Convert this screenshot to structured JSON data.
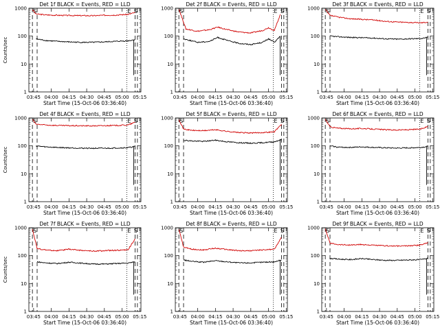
{
  "figure": {
    "background": "#ffffff",
    "panel_columns": 3,
    "event_color": "#000000",
    "lld_color": "#d00000"
  },
  "chart_data": [
    {
      "type": "line",
      "title": "Det 1f BLACK = Events, RED = LLD",
      "xlabel": "Start Time (15-Oct-06 03:36:40)",
      "ylabel": "Counts/sec",
      "ylog": true,
      "ylim": [
        1,
        1000
      ],
      "yticks": [
        "1",
        "10",
        "100",
        "1000"
      ],
      "xlim": [
        "03:41",
        "05:16"
      ],
      "xticks": [
        "03:45",
        "04:00",
        "04:15",
        "04:30",
        "04:45",
        "05:00",
        "05:15"
      ],
      "marker_labels": [
        "S",
        "E",
        "S"
      ],
      "series": [
        {
          "x": [
            "03:44",
            "03:47",
            "03:55",
            "04:05",
            "04:15",
            "04:25",
            "04:35",
            "04:45",
            "04:55",
            "05:05",
            "05:11"
          ],
          "y": [
            900,
            620,
            580,
            560,
            550,
            545,
            540,
            560,
            570,
            600,
            700
          ]
        },
        {
          "x": [
            "03:47",
            "03:55",
            "04:05",
            "04:15",
            "04:25",
            "04:35",
            "04:45",
            "04:55",
            "05:05",
            "05:11"
          ],
          "y": [
            80,
            70,
            65,
            62,
            60,
            60,
            62,
            65,
            68,
            75
          ]
        }
      ]
    },
    {
      "type": "line",
      "title": "Det 2f BLACK = Events, RED = LLD",
      "xlabel": "Start Time (15-Oct-06 03:36:40)",
      "ylabel": "",
      "ylog": true,
      "ylim": [
        1,
        1000
      ],
      "yticks": [
        "1",
        "10",
        "100",
        "1000"
      ],
      "xlim": [
        "03:41",
        "05:16"
      ],
      "xticks": [
        "03:45",
        "04:00",
        "04:15",
        "04:30",
        "04:45",
        "05:00",
        "05:15"
      ],
      "marker_labels": [
        "S",
        "E",
        "S"
      ],
      "series": [
        {
          "x": [
            "03:44",
            "03:50",
            "04:00",
            "04:10",
            "04:17",
            "04:25",
            "04:35",
            "04:45",
            "04:55",
            "05:00",
            "05:05",
            "05:10"
          ],
          "y": [
            950,
            180,
            150,
            170,
            210,
            170,
            140,
            130,
            160,
            200,
            160,
            600
          ]
        },
        {
          "x": [
            "03:48",
            "04:00",
            "04:10",
            "04:17",
            "04:25",
            "04:35",
            "04:45",
            "04:55",
            "05:00",
            "05:05",
            "05:10"
          ],
          "y": [
            80,
            60,
            65,
            90,
            70,
            55,
            50,
            60,
            80,
            60,
            100
          ]
        }
      ]
    },
    {
      "type": "line",
      "title": "Det 3f BLACK = Events, RED = LLD",
      "xlabel": "Start Time (15-Oct-06 03:36:40)",
      "ylabel": "",
      "ylog": true,
      "ylim": [
        1,
        1000
      ],
      "yticks": [
        "1",
        "10",
        "100",
        "1000"
      ],
      "xlim": [
        "03:41",
        "05:16"
      ],
      "xticks": [
        "03:45",
        "04:00",
        "04:15",
        "04:30",
        "04:45",
        "05:00",
        "05:15"
      ],
      "marker_labels": [
        "S",
        "E",
        "S"
      ],
      "series": [
        {
          "x": [
            "03:44",
            "03:48",
            "03:55",
            "04:05",
            "04:15",
            "04:25",
            "04:35",
            "04:45",
            "04:55",
            "05:05",
            "05:11"
          ],
          "y": [
            900,
            550,
            480,
            420,
            400,
            380,
            340,
            320,
            310,
            300,
            320
          ]
        },
        {
          "x": [
            "03:48",
            "03:55",
            "04:05",
            "04:15",
            "04:25",
            "04:35",
            "04:45",
            "04:55",
            "05:05",
            "05:11"
          ],
          "y": [
            100,
            95,
            90,
            88,
            85,
            80,
            78,
            80,
            82,
            90
          ]
        }
      ]
    },
    {
      "type": "line",
      "title": "Det 4f BLACK = Events, RED = LLD",
      "xlabel": "Start Time (15-Oct-06 03:36:40)",
      "ylabel": "Counts/sec",
      "ylog": true,
      "ylim": [
        1,
        1000
      ],
      "yticks": [
        "1",
        "10",
        "100",
        "1000"
      ],
      "xlim": [
        "03:41",
        "05:16"
      ],
      "xticks": [
        "03:45",
        "04:00",
        "04:15",
        "04:30",
        "04:45",
        "05:00",
        "05:15"
      ],
      "marker_labels": [
        "S",
        "E",
        "S"
      ],
      "series": [
        {
          "x": [
            "03:44",
            "03:47",
            "03:55",
            "04:05",
            "04:15",
            "04:25",
            "04:35",
            "04:45",
            "04:55",
            "05:05",
            "05:11"
          ],
          "y": [
            900,
            600,
            560,
            540,
            530,
            525,
            520,
            530,
            540,
            560,
            700
          ]
        },
        {
          "x": [
            "03:47",
            "03:55",
            "04:05",
            "04:15",
            "04:25",
            "04:35",
            "04:45",
            "04:55",
            "05:05",
            "05:11"
          ],
          "y": [
            100,
            92,
            88,
            85,
            83,
            82,
            82,
            84,
            86,
            95
          ]
        }
      ]
    },
    {
      "type": "line",
      "title": "Det 5f BLACK = Events, RED = LLD",
      "xlabel": "Start Time (15-Oct-06 03:36:40)",
      "ylabel": "",
      "ylog": true,
      "ylim": [
        1,
        1000
      ],
      "yticks": [
        "1",
        "10",
        "100",
        "1000"
      ],
      "xlim": [
        "03:41",
        "05:16"
      ],
      "xticks": [
        "03:45",
        "04:00",
        "04:15",
        "04:30",
        "04:45",
        "05:00",
        "05:15"
      ],
      "marker_labels": [
        "S",
        "E",
        "S"
      ],
      "series": [
        {
          "x": [
            "03:44",
            "03:48",
            "03:55",
            "04:05",
            "04:15",
            "04:25",
            "04:35",
            "04:45",
            "04:55",
            "05:05",
            "05:11"
          ],
          "y": [
            900,
            400,
            360,
            350,
            380,
            330,
            300,
            290,
            300,
            320,
            600
          ]
        },
        {
          "x": [
            "03:48",
            "03:55",
            "04:05",
            "04:15",
            "04:25",
            "04:35",
            "04:45",
            "04:55",
            "05:05",
            "05:11"
          ],
          "y": [
            160,
            150,
            145,
            160,
            140,
            130,
            125,
            130,
            140,
            170
          ]
        }
      ]
    },
    {
      "type": "line",
      "title": "Det 6f BLACK = Events, RED = LLD",
      "xlabel": "Start Time (15-Oct-06 03:36:40)",
      "ylabel": "",
      "ylog": true,
      "ylim": [
        1,
        1000
      ],
      "yticks": [
        "1",
        "10",
        "100",
        "1000"
      ],
      "xlim": [
        "03:41",
        "05:16"
      ],
      "xticks": [
        "03:45",
        "04:00",
        "04:15",
        "04:30",
        "04:45",
        "05:00",
        "05:15"
      ],
      "marker_labels": [
        "S",
        "E",
        "S"
      ],
      "series": [
        {
          "x": [
            "03:44",
            "03:48",
            "03:55",
            "04:05",
            "04:15",
            "04:25",
            "04:35",
            "04:45",
            "04:55",
            "05:05",
            "05:11"
          ],
          "y": [
            900,
            480,
            430,
            410,
            420,
            400,
            380,
            370,
            380,
            400,
            500
          ]
        },
        {
          "x": [
            "03:48",
            "03:55",
            "04:05",
            "04:15",
            "04:25",
            "04:35",
            "04:45",
            "04:55",
            "05:05",
            "05:11"
          ],
          "y": [
            100,
            90,
            88,
            92,
            88,
            85,
            83,
            85,
            88,
            95
          ]
        }
      ]
    },
    {
      "type": "line",
      "title": "Det 7f BLACK = Events, RED = LLD",
      "xlabel": "Start Time (15-Oct-06 03:36:40)",
      "ylabel": "Counts/sec",
      "ylog": true,
      "ylim": [
        1,
        1000
      ],
      "yticks": [
        "1",
        "10",
        "100",
        "1000"
      ],
      "xlim": [
        "03:41",
        "05:16"
      ],
      "xticks": [
        "03:45",
        "04:00",
        "04:15",
        "04:30",
        "04:45",
        "05:00",
        "05:15"
      ],
      "marker_labels": [
        "S",
        "E",
        "S"
      ],
      "series": [
        {
          "x": [
            "03:44",
            "03:48",
            "03:55",
            "04:05",
            "04:15",
            "04:25",
            "04:35",
            "04:45",
            "04:55",
            "05:05",
            "05:11"
          ],
          "y": [
            900,
            180,
            160,
            150,
            170,
            155,
            145,
            150,
            155,
            160,
            400
          ]
        },
        {
          "x": [
            "03:48",
            "03:55",
            "04:05",
            "04:15",
            "04:25",
            "04:35",
            "04:45",
            "04:55",
            "05:05",
            "05:11"
          ],
          "y": [
            60,
            55,
            52,
            58,
            54,
            50,
            50,
            52,
            54,
            60
          ]
        }
      ]
    },
    {
      "type": "line",
      "title": "Det 8f BLACK = Events, RED = LLD",
      "xlabel": "Start Time (15-Oct-06 03:36:40)",
      "ylabel": "",
      "ylog": true,
      "ylim": [
        1,
        1000
      ],
      "yticks": [
        "1",
        "10",
        "100",
        "1000"
      ],
      "xlim": [
        "03:41",
        "05:16"
      ],
      "xticks": [
        "03:45",
        "04:00",
        "04:15",
        "04:30",
        "04:45",
        "05:00",
        "05:15"
      ],
      "marker_labels": [
        "S",
        "E",
        "S"
      ],
      "series": [
        {
          "x": [
            "03:44",
            "03:48",
            "03:55",
            "04:05",
            "04:15",
            "04:25",
            "04:35",
            "04:45",
            "04:55",
            "05:05",
            "05:11"
          ],
          "y": [
            900,
            200,
            170,
            160,
            185,
            165,
            150,
            150,
            160,
            170,
            450
          ]
        },
        {
          "x": [
            "03:48",
            "03:55",
            "04:05",
            "04:15",
            "04:25",
            "04:35",
            "04:45",
            "04:55",
            "05:05",
            "05:11"
          ],
          "y": [
            70,
            62,
            58,
            66,
            60,
            55,
            55,
            58,
            60,
            70
          ]
        }
      ]
    },
    {
      "type": "line",
      "title": "Det 9f BLACK = Events, RED = LLD",
      "xlabel": "Start Time (15-Oct-06 03:36:40)",
      "ylabel": "",
      "ylog": true,
      "ylim": [
        1,
        1000
      ],
      "yticks": [
        "1",
        "10",
        "100",
        "1000"
      ],
      "xlim": [
        "03:41",
        "05:16"
      ],
      "xticks": [
        "03:45",
        "04:00",
        "04:15",
        "04:30",
        "04:45",
        "05:00",
        "05:15"
      ],
      "marker_labels": [
        "S",
        "E",
        "S"
      ],
      "series": [
        {
          "x": [
            "03:44",
            "03:48",
            "03:55",
            "04:05",
            "04:15",
            "04:25",
            "04:35",
            "04:45",
            "04:55",
            "05:05",
            "05:11"
          ],
          "y": [
            900,
            280,
            250,
            240,
            250,
            235,
            225,
            220,
            225,
            240,
            300
          ]
        },
        {
          "x": [
            "03:48",
            "03:55",
            "04:05",
            "04:15",
            "04:25",
            "04:35",
            "04:45",
            "04:55",
            "05:05",
            "05:11"
          ],
          "y": [
            80,
            75,
            72,
            78,
            72,
            68,
            68,
            70,
            72,
            80
          ]
        }
      ]
    }
  ]
}
